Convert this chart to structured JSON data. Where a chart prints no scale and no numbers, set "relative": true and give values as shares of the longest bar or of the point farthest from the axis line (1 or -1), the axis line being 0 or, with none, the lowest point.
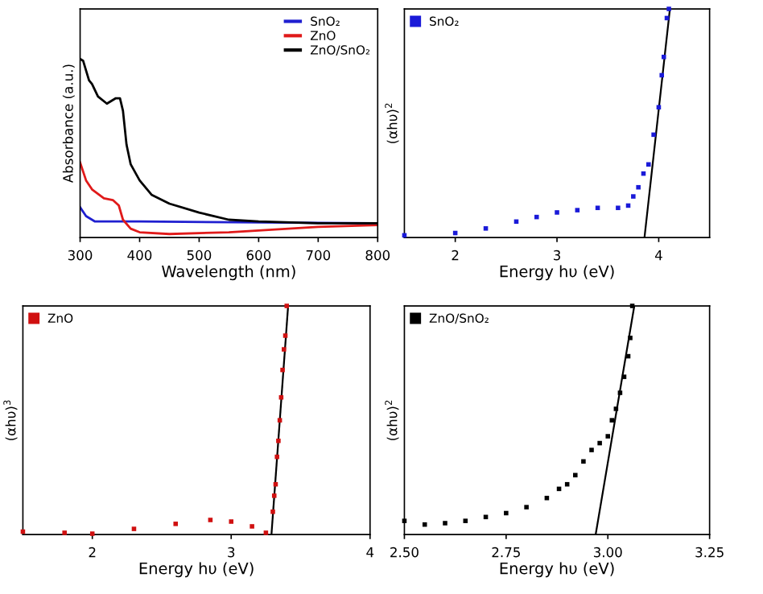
{
  "chart_data": [
    {
      "type": "line",
      "relative": true,
      "xlabel": "Wavelength (nm)",
      "ylabel": "Absorbance (a.u.)",
      "xlim": [
        300,
        800
      ],
      "xticks": [
        300,
        400,
        500,
        600,
        700,
        800
      ],
      "legend": "top right",
      "tick_labels": "x",
      "series": [
        {
          "name": "SnO₂",
          "color": "#1f1fd0",
          "x": [
            300,
            310,
            325,
            400,
            800
          ],
          "values": [
            0.17,
            0.12,
            0.09,
            0.09,
            0.08
          ]
        },
        {
          "name": "ZnO",
          "color": "#e01a1a",
          "x": [
            300,
            310,
            320,
            340,
            355,
            365,
            372,
            385,
            400,
            450,
            550,
            650,
            700,
            800
          ],
          "values": [
            0.42,
            0.32,
            0.27,
            0.22,
            0.21,
            0.18,
            0.1,
            0.05,
            0.03,
            0.02,
            0.03,
            0.05,
            0.06,
            0.07
          ]
        },
        {
          "name": "ZnO/SnO₂",
          "color": "#000000",
          "x": [
            300,
            305,
            315,
            320,
            330,
            345,
            360,
            367,
            372,
            378,
            385,
            400,
            420,
            450,
            500,
            550,
            600,
            700,
            800
          ],
          "values": [
            1,
            0.99,
            0.88,
            0.86,
            0.79,
            0.75,
            0.78,
            0.78,
            0.71,
            0.52,
            0.41,
            0.32,
            0.24,
            0.19,
            0.14,
            0.1,
            0.09,
            0.08,
            0.08
          ]
        }
      ]
    },
    {
      "type": "scatter",
      "relative": true,
      "xlabel": "Energy hυ (eV)",
      "ylabel": "(αhυ)$^{2}$",
      "xlim": [
        1.5,
        4.5
      ],
      "xticks": [
        2,
        3,
        4
      ],
      "legend": "top left",
      "tick_labels": "x",
      "marker": "square",
      "series": [
        {
          "name": "SnO₂",
          "color": "#1a1ad8",
          "x": [
            1.5,
            2.0,
            2.3,
            2.6,
            2.8,
            3.0,
            3.2,
            3.4,
            3.6,
            3.7,
            3.75,
            3.8,
            3.85,
            3.9,
            3.95,
            4.0,
            4.03,
            4.05,
            4.08,
            4.1
          ],
          "values": [
            0.01,
            0.02,
            0.04,
            0.07,
            0.09,
            0.11,
            0.12,
            0.13,
            0.13,
            0.14,
            0.18,
            0.22,
            0.28,
            0.32,
            0.45,
            0.57,
            0.71,
            0.79,
            0.96,
            1.0
          ]
        },
        {
          "type": "line",
          "marker": "none",
          "color": "#000000",
          "x": [
            3.86,
            4.11
          ],
          "values": [
            0,
            1.0
          ]
        }
      ]
    },
    {
      "type": "scatter",
      "relative": true,
      "xlabel": "Energy hυ (eV)",
      "ylabel": "(αhυ)$^{3}$",
      "xlim": [
        1.5,
        4
      ],
      "xticks": [
        2,
        3,
        4
      ],
      "legend": "top left",
      "tick_labels": "x",
      "marker": "square",
      "series": [
        {
          "name": "ZnO",
          "color": "#d01010",
          "x": [
            1.5,
            1.8,
            2.0,
            2.3,
            2.6,
            2.85,
            3.0,
            3.15,
            3.25,
            3.3,
            3.31,
            3.32,
            3.33,
            3.34,
            3.35,
            3.36,
            3.37,
            3.38,
            3.39,
            3.4
          ],
          "values": [
            0.013,
            0.008,
            0.004,
            0.025,
            0.047,
            0.064,
            0.057,
            0.036,
            0.008,
            0.1,
            0.17,
            0.22,
            0.34,
            0.41,
            0.5,
            0.6,
            0.72,
            0.81,
            0.87,
            1.0
          ]
        },
        {
          "type": "line",
          "marker": "none",
          "color": "#000000",
          "x": [
            3.29,
            3.41
          ],
          "values": [
            0,
            1.0
          ]
        }
      ]
    },
    {
      "type": "scatter",
      "relative": true,
      "xlabel": "Energy hυ (eV)",
      "ylabel": "(αhυ)$^{2}$",
      "xlim": [
        2.5,
        3.25
      ],
      "xticks": [
        {
          "value": 2.5,
          "label": "2.50"
        },
        2.75,
        {
          "value": 3.0,
          "label": "3.00"
        },
        3.25
      ],
      "legend": "top left",
      "tick_labels": "x",
      "marker": "square",
      "series": [
        {
          "name": "ZnO/SnO₂",
          "color": "#000000",
          "x": [
            2.5,
            2.55,
            2.6,
            2.65,
            2.7,
            2.75,
            2.8,
            2.85,
            2.88,
            2.9,
            2.92,
            2.94,
            2.96,
            2.98,
            3.0,
            3.01,
            3.02,
            3.03,
            3.04,
            3.05,
            3.055,
            3.06
          ],
          "values": [
            0.06,
            0.044,
            0.05,
            0.06,
            0.077,
            0.094,
            0.12,
            0.16,
            0.2,
            0.22,
            0.26,
            0.32,
            0.37,
            0.4,
            0.43,
            0.5,
            0.55,
            0.62,
            0.69,
            0.78,
            0.86,
            1.0
          ]
        },
        {
          "type": "line",
          "marker": "none",
          "color": "#000000",
          "x": [
            2.97,
            3.065
          ],
          "values": [
            0,
            1.0
          ]
        }
      ]
    }
  ]
}
